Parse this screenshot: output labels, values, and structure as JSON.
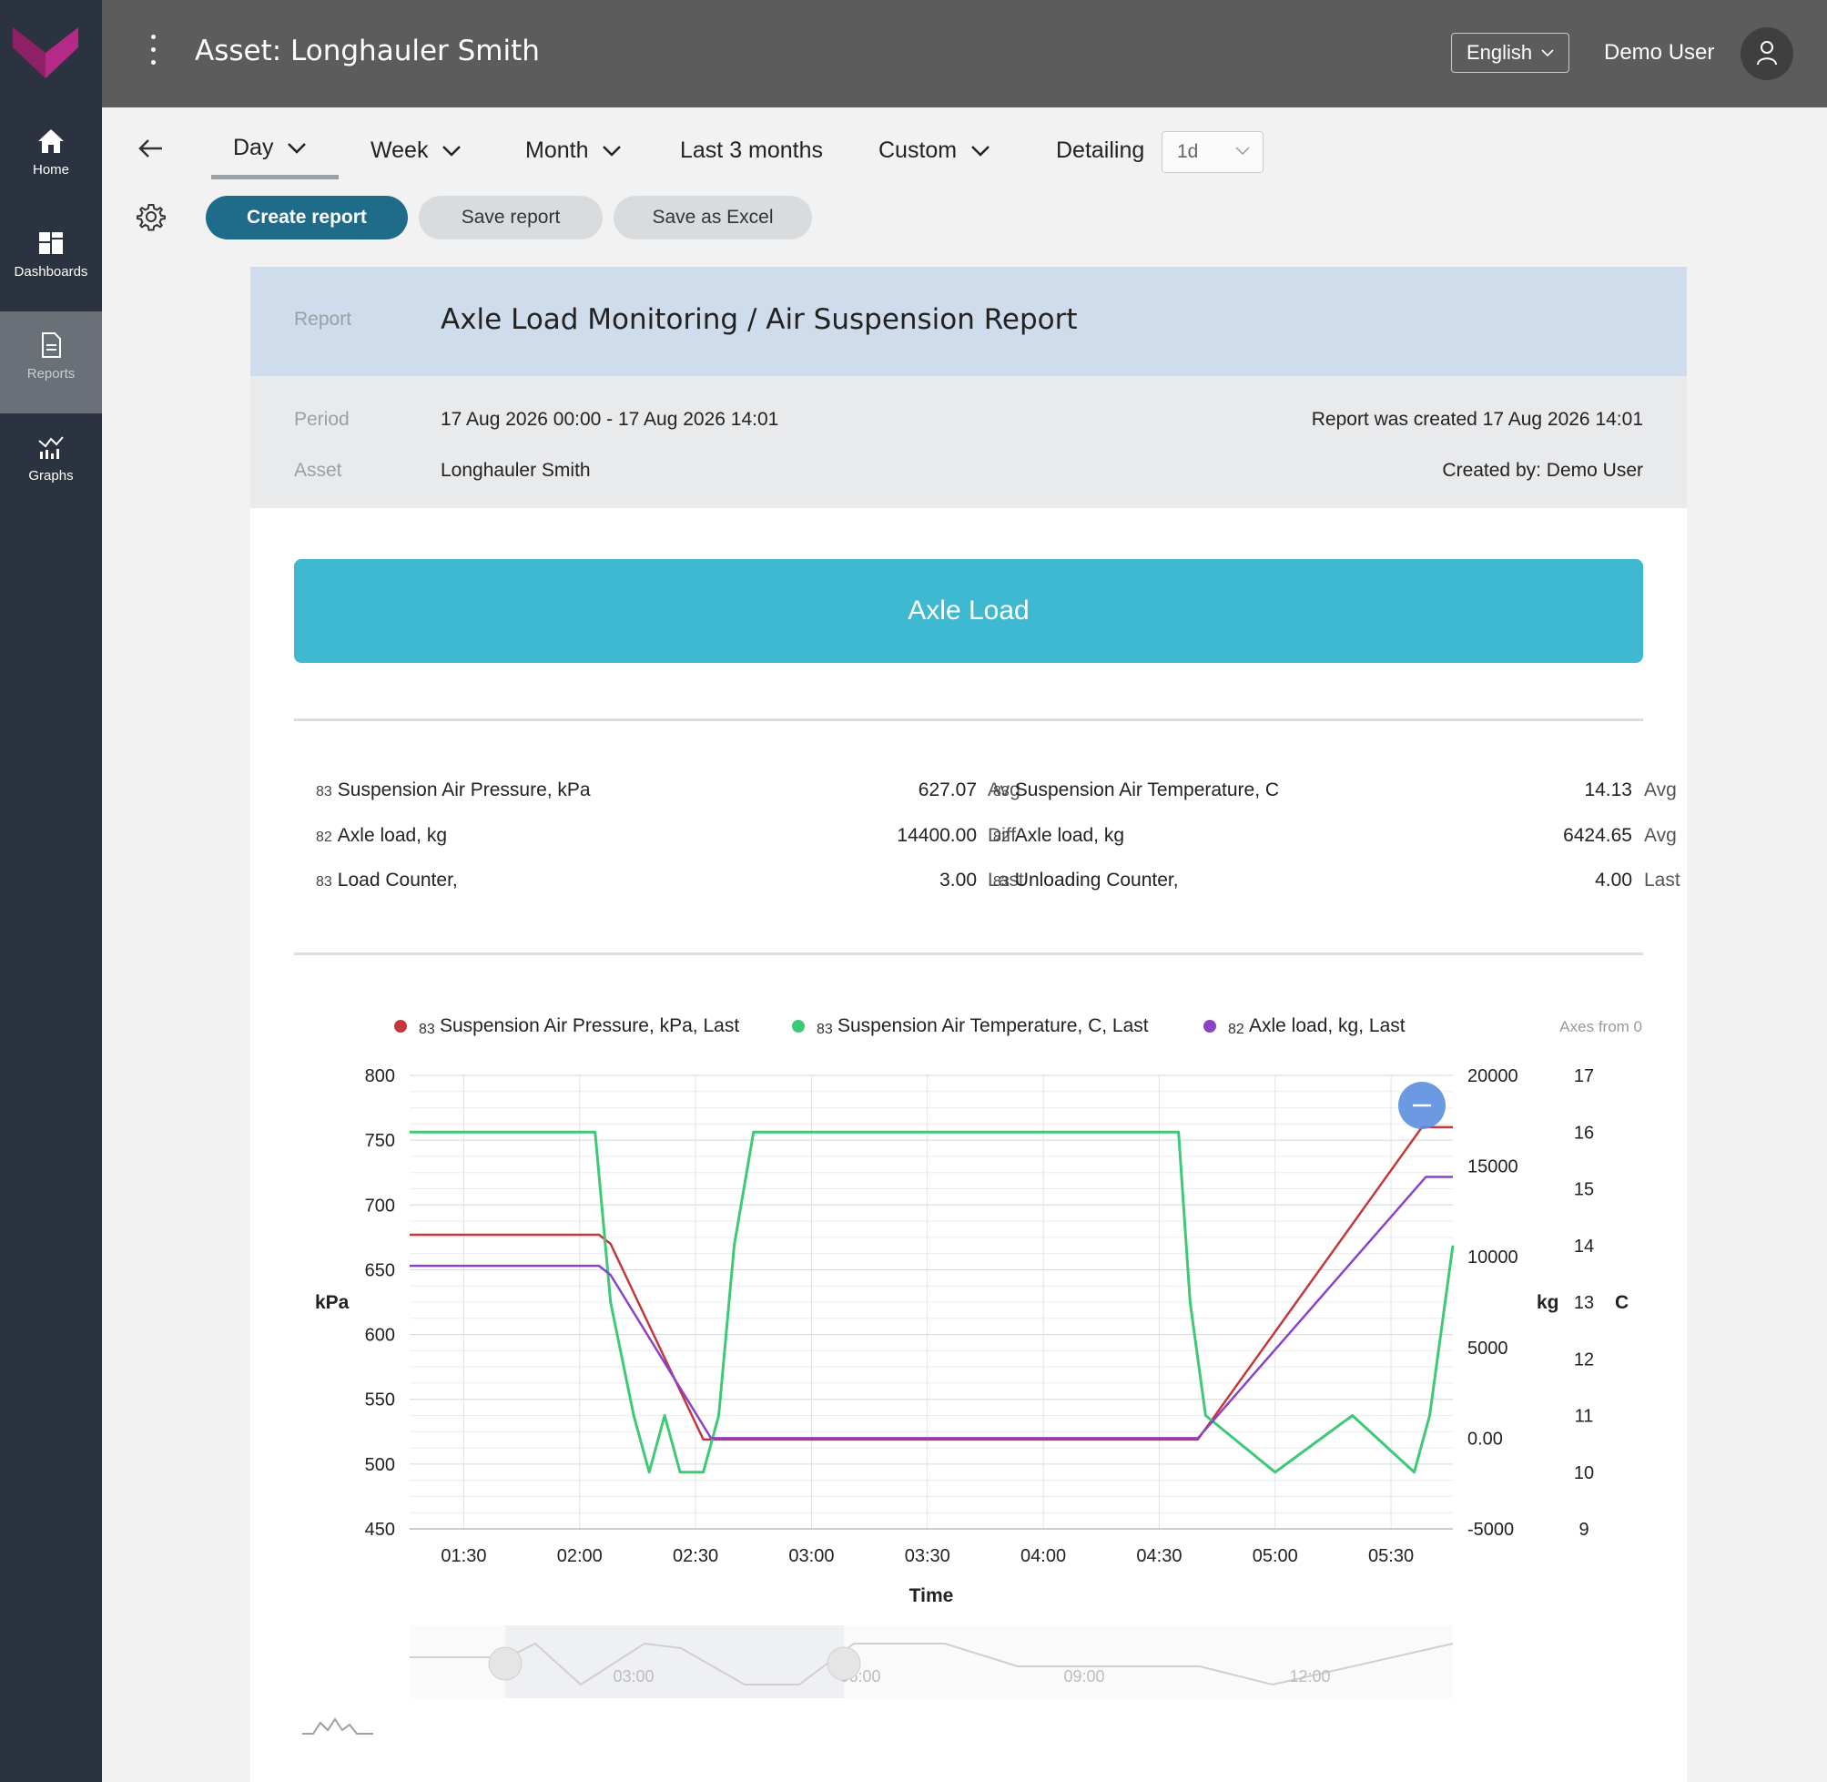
{
  "header": {
    "title": "Asset: Longhauler Smith",
    "language": "English",
    "user": "Demo User"
  },
  "nav": {
    "items": [
      {
        "label": "Home",
        "icon": "home-icon"
      },
      {
        "label": "Dashboards",
        "icon": "dashboards-icon"
      },
      {
        "label": "Reports",
        "icon": "reports-icon",
        "active": true
      },
      {
        "label": "Graphs",
        "icon": "graphs-icon"
      }
    ]
  },
  "period_tabs": {
    "day": "Day",
    "week": "Week",
    "month": "Month",
    "last3": "Last 3 months",
    "custom": "Custom",
    "detailing_label": "Detailing",
    "detailing_value": "1d",
    "selected": "Day"
  },
  "actions": {
    "create": "Create report",
    "save": "Save report",
    "excel": "Save as Excel"
  },
  "report": {
    "report_label": "Report",
    "report_title": "Axle Load Monitoring / Air Suspension Report",
    "period_label": "Period",
    "period_value": "17 Aug 2026 00:00 - 17 Aug 2026 14:01",
    "created_at": "Report was created 17 Aug 2026 14:01",
    "asset_label": "Asset",
    "asset_value": "Longhauler Smith",
    "created_by": "Created by: Demo User"
  },
  "section": {
    "title": "Axle Load"
  },
  "stats": {
    "left": [
      {
        "sub": "83",
        "name": "Suspension Air Pressure, kPa",
        "value": "627.07",
        "agg": "Avg"
      },
      {
        "sub": "82",
        "name": "Axle load, kg",
        "value": "14400.00",
        "agg": "Diff"
      },
      {
        "sub": "83",
        "name": "Load Counter,",
        "value": "3.00",
        "agg": "Last"
      }
    ],
    "right": [
      {
        "sub": "83",
        "name": "Suspension Air Temperature, C",
        "value": "14.13",
        "agg": "Avg"
      },
      {
        "sub": "82",
        "name": "Axle load, kg",
        "value": "6424.65",
        "agg": "Avg"
      },
      {
        "sub": "83",
        "name": "Unloading Counter,",
        "value": "4.00",
        "agg": "Last"
      }
    ]
  },
  "chart_data": {
    "type": "line",
    "axes_note": "Axes from 0",
    "xlabel": "Time",
    "x_ticks": [
      "01:30",
      "02:00",
      "02:30",
      "03:00",
      "03:30",
      "04:00",
      "04:30",
      "05:00",
      "05:30"
    ],
    "x_range": [
      "01:16",
      "05:46"
    ],
    "y_left": {
      "label": "kPa",
      "ticks": [
        "800",
        "750",
        "700",
        "650",
        "600",
        "550",
        "500",
        "450"
      ],
      "range": [
        450,
        800
      ]
    },
    "y_right1": {
      "label": "kg",
      "ticks": [
        "20000",
        "15000",
        "10000",
        "5000",
        "0.00",
        "-5000"
      ],
      "range": [
        -5000,
        20000
      ]
    },
    "y_right2": {
      "label": "C",
      "ticks": [
        "17",
        "16",
        "15",
        "14",
        "13",
        "12",
        "11",
        "10",
        "9"
      ],
      "range": [
        9,
        17
      ]
    },
    "grid": true,
    "legend_position": "top",
    "series": [
      {
        "sub": "83",
        "name": "Suspension Air Pressure, kPa, Last",
        "color": "#c0393b",
        "axis": "kPa",
        "x": [
          "01:16",
          "02:05",
          "02:08",
          "02:32",
          "04:40",
          "05:38",
          "05:46"
        ],
        "y": [
          677,
          677,
          670,
          519,
          519,
          760,
          760
        ]
      },
      {
        "sub": "83",
        "name": "Suspension Air Temperature, C, Last",
        "color": "#3ec977",
        "axis": "C",
        "x": [
          "01:16",
          "02:04",
          "02:08",
          "02:14",
          "02:18",
          "02:22",
          "02:26",
          "02:32",
          "02:36",
          "02:40",
          "02:45",
          "04:35",
          "04:38",
          "04:42",
          "05:00",
          "05:20",
          "05:36",
          "05:40",
          "05:46"
        ],
        "y": [
          16,
          16,
          13,
          11,
          10,
          11,
          10,
          10,
          11,
          14,
          16,
          16,
          13,
          11,
          10,
          11,
          10,
          11,
          14
        ]
      },
      {
        "sub": "82",
        "name": "Axle load, kg, Last",
        "color": "#8a42c6",
        "axis": "kg",
        "x": [
          "01:16",
          "02:05",
          "02:08",
          "02:34",
          "04:40",
          "05:39",
          "05:46"
        ],
        "y": [
          9500,
          9500,
          9000,
          0,
          0,
          14400,
          14400
        ]
      }
    ],
    "navigator_labels": [
      "03:00",
      "06:00",
      "09:00",
      "12:00"
    ]
  }
}
